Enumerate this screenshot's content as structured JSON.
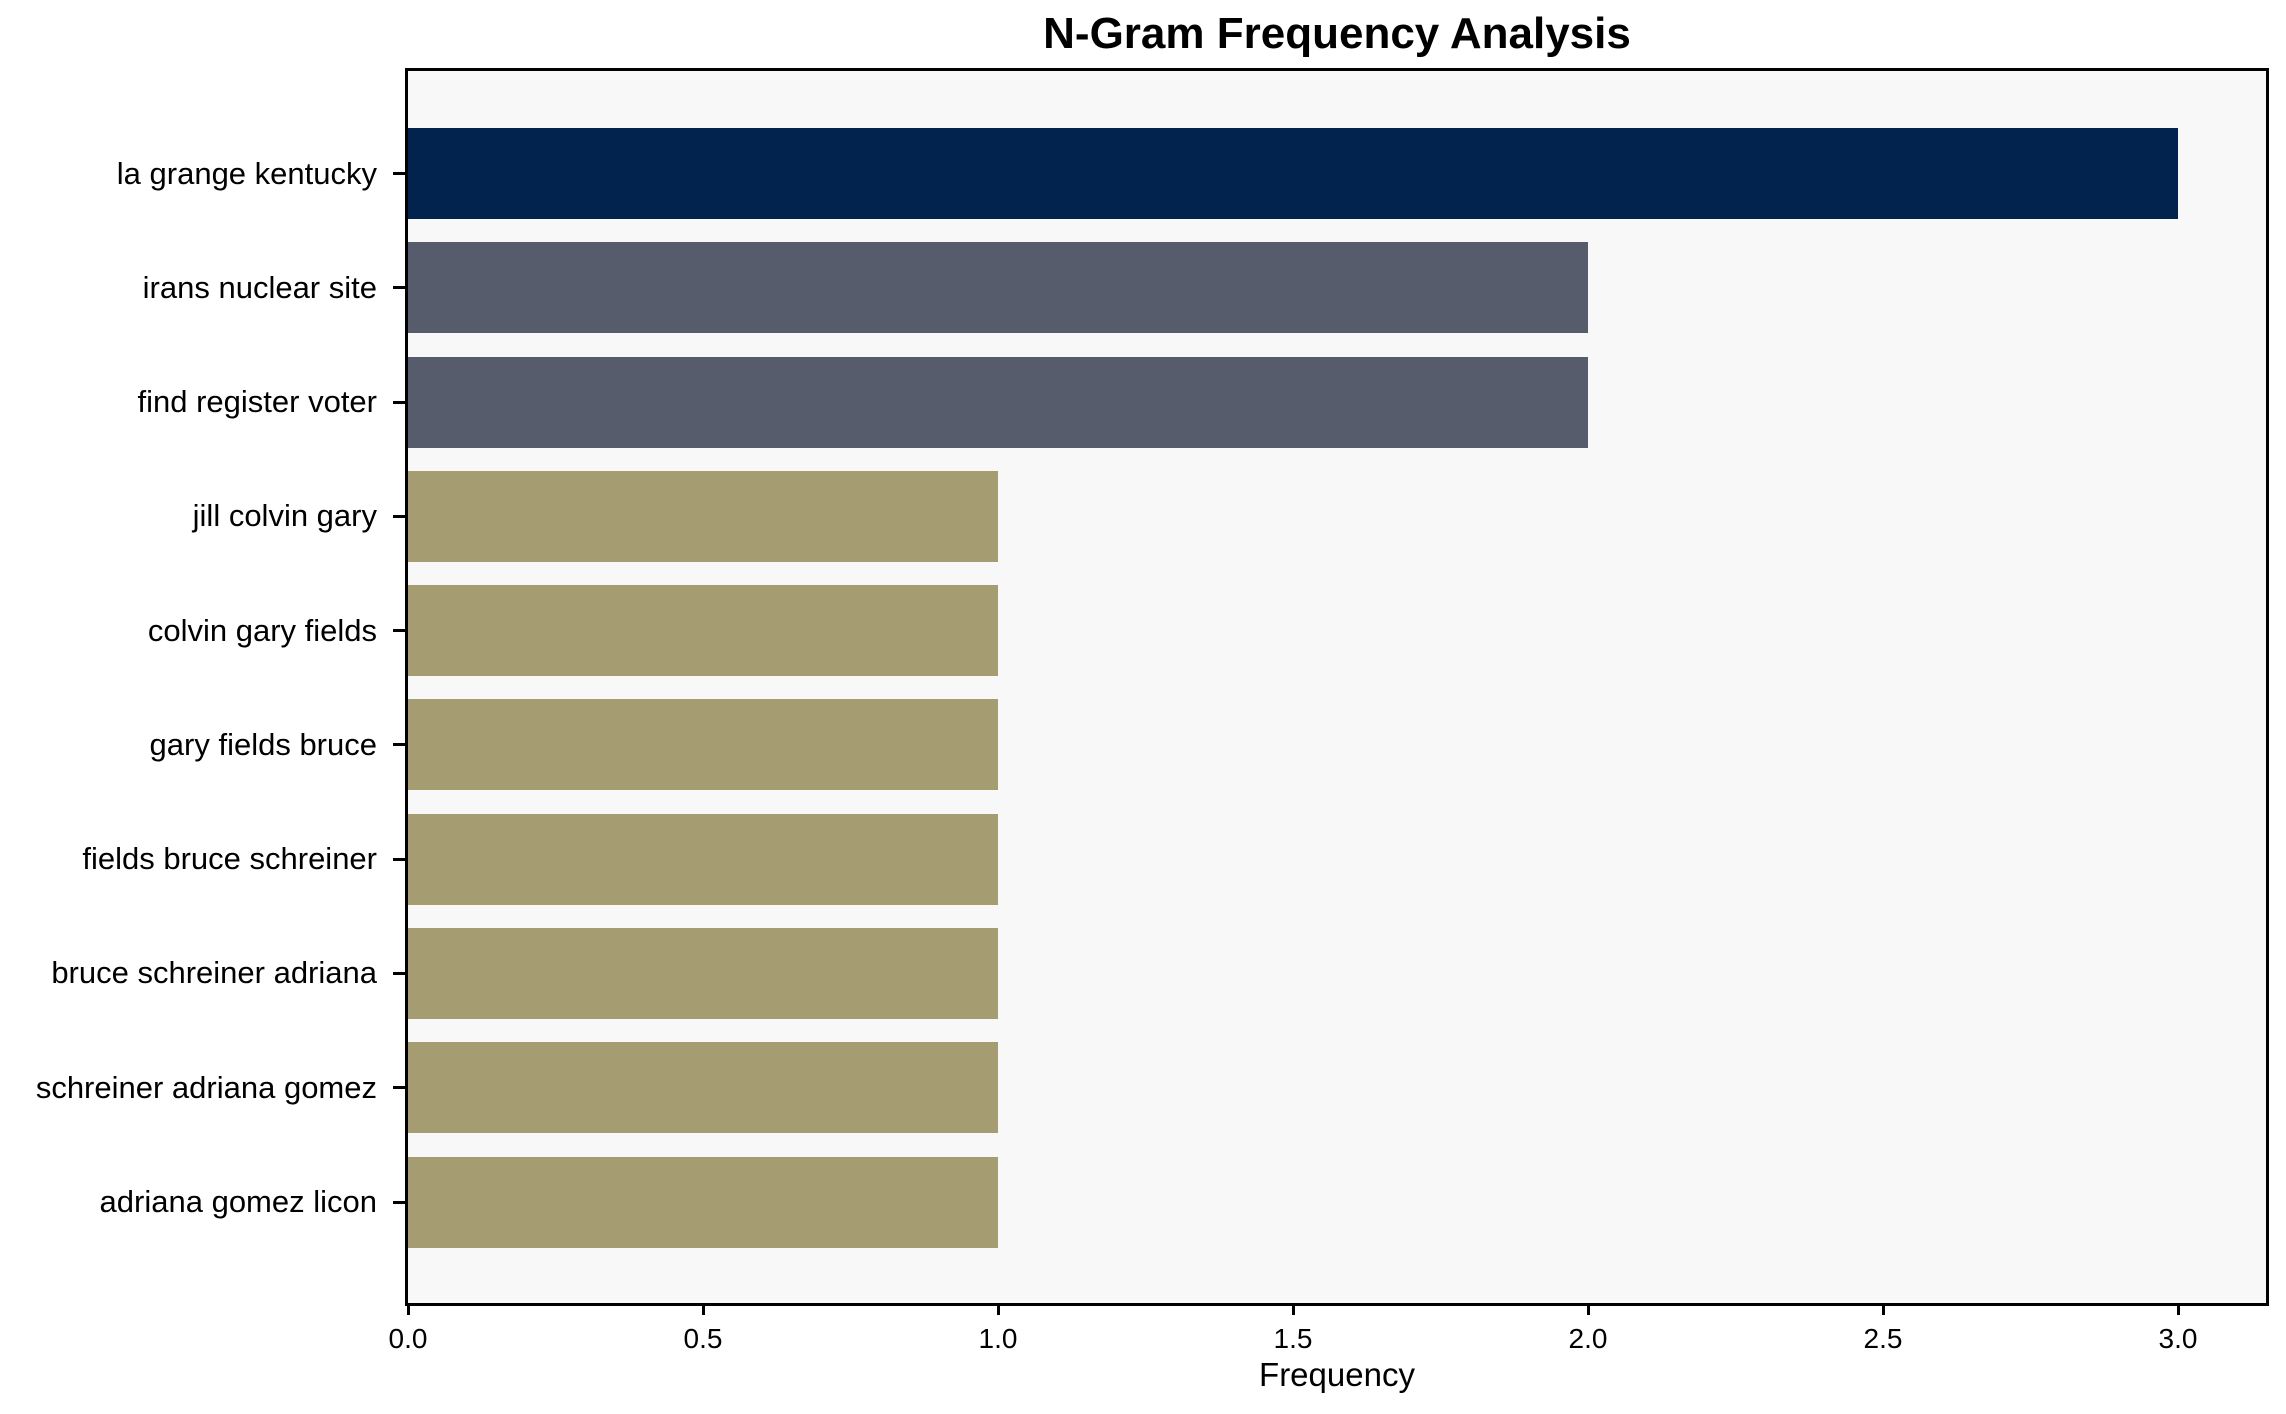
{
  "chart_data": {
    "type": "bar",
    "orientation": "horizontal",
    "title": "N-Gram Frequency Analysis",
    "xlabel": "Frequency",
    "ylabel": "",
    "categories": [
      "la grange kentucky",
      "irans nuclear site",
      "find register voter",
      "jill colvin gary",
      "colvin gary fields",
      "gary fields bruce",
      "fields bruce schreiner",
      "bruce schreiner adriana",
      "schreiner adriana gomez",
      "adriana gomez licon"
    ],
    "values": [
      3,
      2,
      2,
      1,
      1,
      1,
      1,
      1,
      1,
      1
    ],
    "bar_colors": [
      "#02234d",
      "#565c6c",
      "#565c6c",
      "#a69c72",
      "#a69c72",
      "#a69c72",
      "#a69c72",
      "#a69c72",
      "#a69c72",
      "#a69c72"
    ],
    "xlim": [
      0,
      3.15
    ],
    "x_tick_values": [
      0,
      0.5,
      1,
      1.5,
      2,
      2.5,
      3
    ],
    "x_tick_labels": [
      "0.0",
      "0.5",
      "1.0",
      "1.5",
      "2.0",
      "2.5",
      "3.0"
    ],
    "grid": false,
    "legend": "none",
    "plot_background": "#f8f8f9",
    "figure_background": "#ffffff",
    "spine_color": "#000000"
  }
}
